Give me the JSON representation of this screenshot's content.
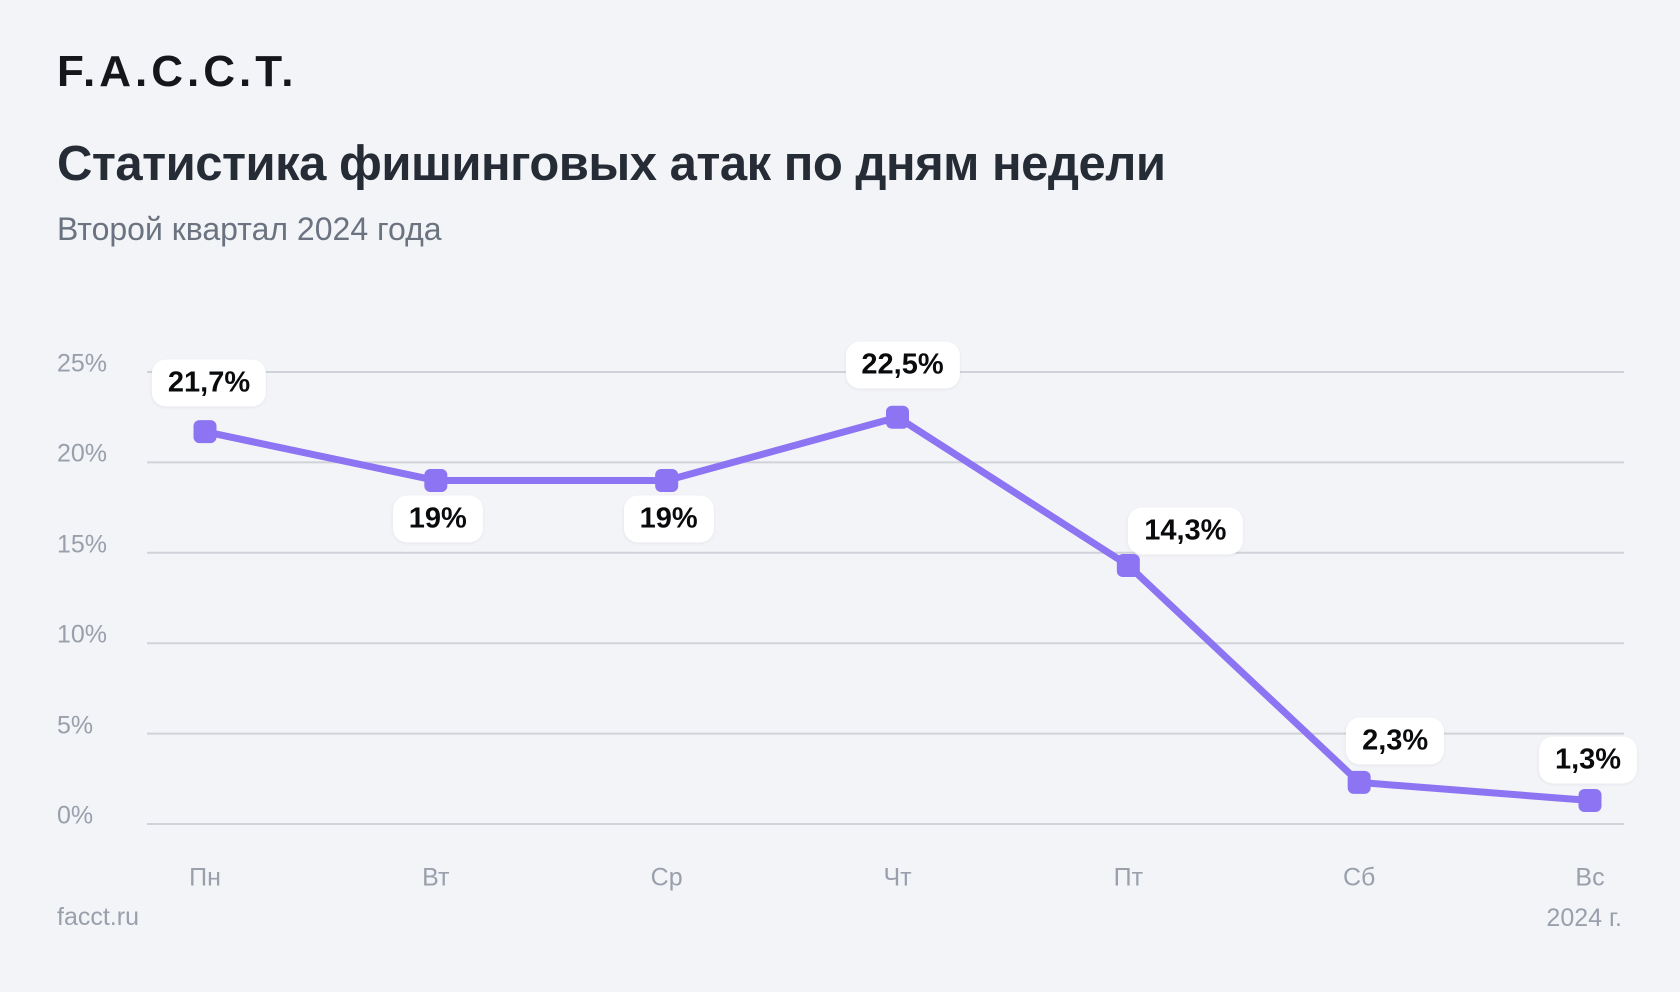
{
  "logo": "F.A.C.C.T.",
  "header": {
    "title": "Статистика фишинговых атак по дням недели",
    "subtitle": "Второй квартал 2024 года"
  },
  "footer": {
    "source": "facct.ru",
    "year": "2024 г."
  },
  "colors": {
    "background": "#f3f4f8",
    "accent_purple": "#8c74f2",
    "gridline": "#cfd3d9",
    "title_text": "#262c35",
    "subtitle_text": "#6b7380",
    "axis_text": "#99a0ac",
    "value_label_text": "#0a0b0d",
    "value_label_bg": "#ffffff"
  },
  "chart_data": {
    "type": "line",
    "title": "Статистика фишинговых атак по дням недели",
    "subtitle": "Второй квартал 2024 года",
    "categories": [
      "Пн",
      "Вт",
      "Ср",
      "Чт",
      "Пт",
      "Сб",
      "Вс"
    ],
    "values": [
      21.7,
      19,
      19,
      22.5,
      14.3,
      2.3,
      1.3
    ],
    "point_labels": [
      "21,7%",
      "19%",
      "19%",
      "22,5%",
      "14,3%",
      "2,3%",
      "1,3%"
    ],
    "y_ticks": [
      "25%",
      "20%",
      "15%",
      "10%",
      "5%",
      "0%"
    ],
    "y_tick_values": [
      25,
      20,
      15,
      10,
      5,
      0
    ],
    "ylim": [
      0,
      27.5
    ],
    "xlabel": "",
    "ylabel": "",
    "grid": "horizontal-only",
    "legend": "none",
    "marker": "rounded-square",
    "line_color": "#8c74f2"
  }
}
